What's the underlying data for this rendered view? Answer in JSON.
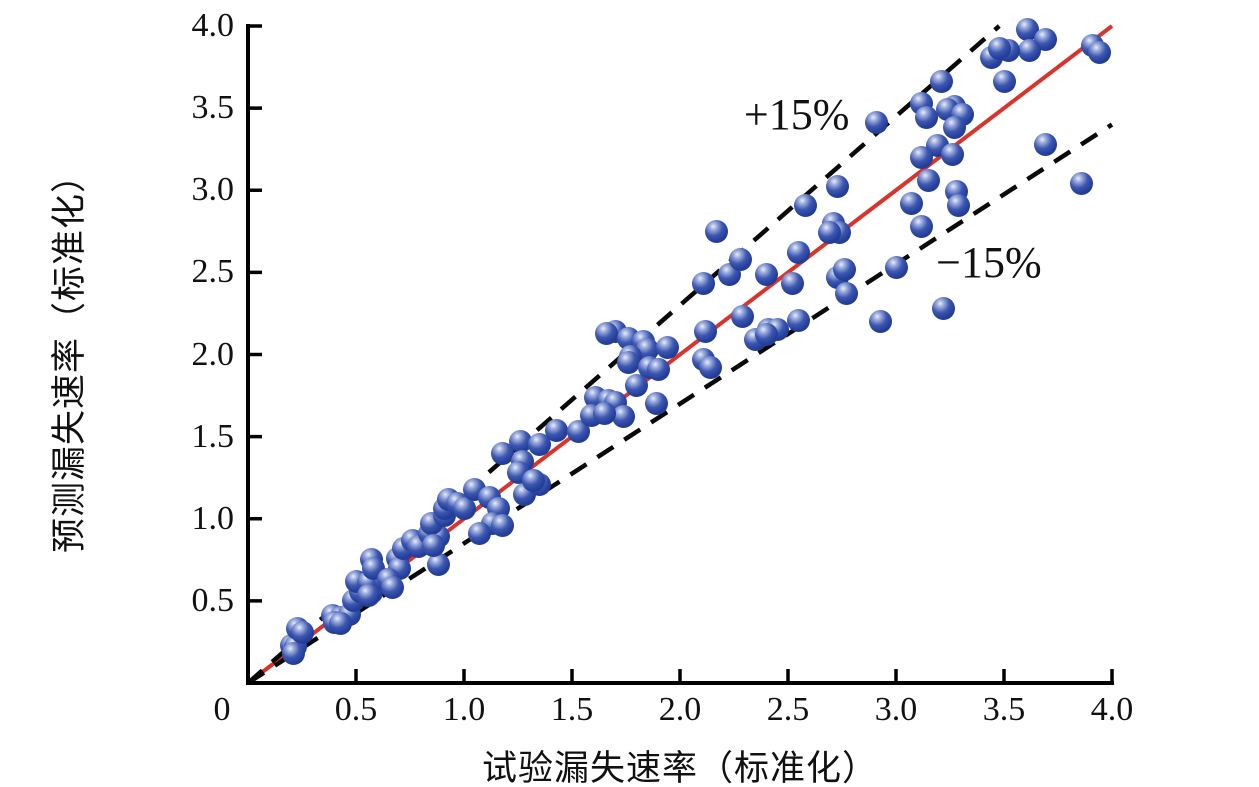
{
  "chart_data": {
    "type": "scatter",
    "title": "",
    "xlabel": "试验漏失速率（标准化）",
    "ylabel": "预测漏失速率（标准化）",
    "xlim": [
      0,
      4.0
    ],
    "ylim": [
      0,
      4.0
    ],
    "grid": false,
    "legend_position": "none",
    "x_ticks": {
      "values": [
        0,
        0.5,
        1.0,
        1.5,
        2.0,
        2.5,
        3.0,
        3.5,
        4.0
      ],
      "labels": [
        "0",
        "0.5",
        "1.0",
        "1.5",
        "2.0",
        "2.5",
        "3.0",
        "3.5",
        "4.0"
      ]
    },
    "y_ticks": {
      "values": [
        0.5,
        1.0,
        1.5,
        2.0,
        2.5,
        3.0,
        3.5,
        4.0
      ],
      "labels": [
        "0.5",
        "1.0",
        "1.5",
        "2.0",
        "2.5",
        "3.0",
        "3.5",
        "4.0"
      ]
    },
    "reference_lines": [
      {
        "name": "parity-line",
        "style": "solid",
        "color": "#d9342c",
        "from": [
          0,
          0
        ],
        "to": [
          4.0,
          4.0
        ]
      },
      {
        "name": "upper-bound-line",
        "style": "dashed",
        "color": "#0a0a0a",
        "from": [
          0,
          0
        ],
        "to": [
          3.478,
          4.0
        ],
        "slope": 1.15
      },
      {
        "name": "lower-bound-line",
        "style": "dashed",
        "color": "#0a0a0a",
        "from": [
          0,
          0
        ],
        "to": [
          4.0,
          3.4
        ],
        "slope": 0.85
      }
    ],
    "annotations": [
      {
        "text": "+15%",
        "x": 2.54,
        "y": 3.46
      },
      {
        "text": "−15%",
        "x": 3.43,
        "y": 2.56
      }
    ],
    "series": [
      {
        "name": "prediction-vs-experiment",
        "marker": "sphere",
        "color": "#25409c",
        "points": [
          [
            0.2,
            0.23
          ],
          [
            0.22,
            0.22
          ],
          [
            0.21,
            0.18
          ],
          [
            0.23,
            0.33
          ],
          [
            0.25,
            0.31
          ],
          [
            0.39,
            0.41
          ],
          [
            0.43,
            0.4
          ],
          [
            0.47,
            0.42
          ],
          [
            0.4,
            0.37
          ],
          [
            0.43,
            0.36
          ],
          [
            0.49,
            0.5
          ],
          [
            0.52,
            0.56
          ],
          [
            0.57,
            0.55
          ],
          [
            0.5,
            0.62
          ],
          [
            0.56,
            0.61
          ],
          [
            0.63,
            0.63
          ],
          [
            0.56,
            0.53
          ],
          [
            0.57,
            0.75
          ],
          [
            0.58,
            0.7
          ],
          [
            0.69,
            0.76
          ],
          [
            0.7,
            0.7
          ],
          [
            0.65,
            0.63
          ],
          [
            0.67,
            0.58
          ],
          [
            0.72,
            0.82
          ],
          [
            0.76,
            0.87
          ],
          [
            0.79,
            0.83
          ],
          [
            0.84,
            0.91
          ],
          [
            0.88,
            0.89
          ],
          [
            0.85,
            0.97
          ],
          [
            0.88,
            0.72
          ],
          [
            0.86,
            0.84
          ],
          [
            0.91,
            1.02
          ],
          [
            0.91,
            1.06
          ],
          [
            0.93,
            1.12
          ],
          [
            0.97,
            1.09
          ],
          [
            1.0,
            1.06
          ],
          [
            1.05,
            1.18
          ],
          [
            1.12,
            1.13
          ],
          [
            1.16,
            1.06
          ],
          [
            1.13,
            0.97
          ],
          [
            1.18,
            0.96
          ],
          [
            1.07,
            0.91
          ],
          [
            1.18,
            1.4
          ],
          [
            1.26,
            1.47
          ],
          [
            1.27,
            1.35
          ],
          [
            1.25,
            1.28
          ],
          [
            1.28,
            1.15
          ],
          [
            1.35,
            1.45
          ],
          [
            1.35,
            1.21
          ],
          [
            1.32,
            1.23
          ],
          [
            1.43,
            1.54
          ],
          [
            1.53,
            1.53
          ],
          [
            1.61,
            1.74
          ],
          [
            1.67,
            1.72
          ],
          [
            1.7,
            1.71
          ],
          [
            1.74,
            1.62
          ],
          [
            1.59,
            1.63
          ],
          [
            1.65,
            1.64
          ],
          [
            1.89,
            1.7
          ],
          [
            1.7,
            2.14
          ],
          [
            1.66,
            2.13
          ],
          [
            1.76,
            2.1
          ],
          [
            1.83,
            2.08
          ],
          [
            1.85,
            2.03
          ],
          [
            1.94,
            2.04
          ],
          [
            1.77,
            1.99
          ],
          [
            1.76,
            1.95
          ],
          [
            1.86,
            1.92
          ],
          [
            1.9,
            1.91
          ],
          [
            1.8,
            1.81
          ],
          [
            2.11,
            2.43
          ],
          [
            2.23,
            2.49
          ],
          [
            2.4,
            2.49
          ],
          [
            2.52,
            2.43
          ],
          [
            2.73,
            2.47
          ],
          [
            2.77,
            2.37
          ],
          [
            2.29,
            2.23
          ],
          [
            2.12,
            2.14
          ],
          [
            2.55,
            2.21
          ],
          [
            2.41,
            2.15
          ],
          [
            2.45,
            2.15
          ],
          [
            2.35,
            2.09
          ],
          [
            2.4,
            2.12
          ],
          [
            2.11,
            1.97
          ],
          [
            2.14,
            1.92
          ],
          [
            2.93,
            2.2
          ],
          [
            3.0,
            2.53
          ],
          [
            3.22,
            2.28
          ],
          [
            2.17,
            2.75
          ],
          [
            2.28,
            2.58
          ],
          [
            2.55,
            2.62
          ],
          [
            2.58,
            2.91
          ],
          [
            2.71,
            2.8
          ],
          [
            2.74,
            2.74
          ],
          [
            2.69,
            2.74
          ],
          [
            2.73,
            3.02
          ],
          [
            2.76,
            2.52
          ],
          [
            2.91,
            3.41
          ],
          [
            3.61,
            3.98
          ],
          [
            3.69,
            3.92
          ],
          [
            3.91,
            3.88
          ],
          [
            3.94,
            3.84
          ],
          [
            3.62,
            3.85
          ],
          [
            3.52,
            3.85
          ],
          [
            3.44,
            3.81
          ],
          [
            3.48,
            3.86
          ],
          [
            3.5,
            3.66
          ],
          [
            3.21,
            3.66
          ],
          [
            3.12,
            3.53
          ],
          [
            3.14,
            3.44
          ],
          [
            3.27,
            3.51
          ],
          [
            3.24,
            3.49
          ],
          [
            3.31,
            3.46
          ],
          [
            3.27,
            3.38
          ],
          [
            3.19,
            3.27
          ],
          [
            3.12,
            3.2
          ],
          [
            3.26,
            3.22
          ],
          [
            3.69,
            3.28
          ],
          [
            3.15,
            3.06
          ],
          [
            3.07,
            2.92
          ],
          [
            3.28,
            2.99
          ],
          [
            3.29,
            2.91
          ],
          [
            3.86,
            3.04
          ],
          [
            3.12,
            2.78
          ]
        ]
      }
    ],
    "colors": {
      "point_fill": "#25409c",
      "point_highlight": "#e9edf9",
      "parity_line": "#d9342c",
      "bound_lines": "#0a0a0a",
      "axis": "#000000",
      "text": "#111111",
      "background": "#ffffff"
    }
  }
}
